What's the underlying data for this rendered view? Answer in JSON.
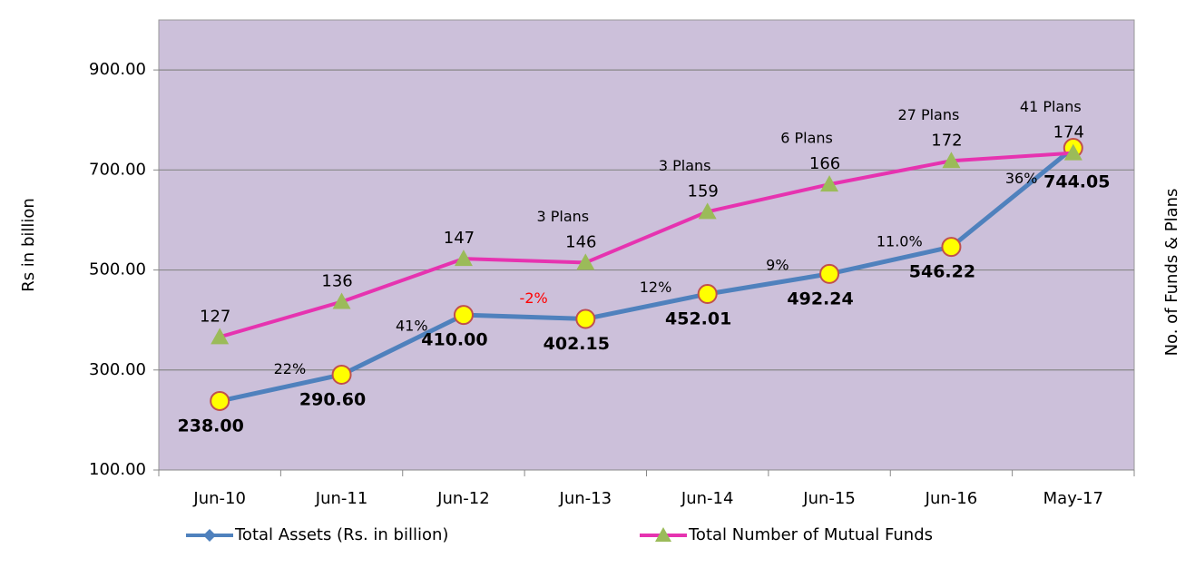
{
  "chart_data": {
    "type": "line",
    "categories": [
      "Jun-10",
      "Jun-11",
      "Jun-12",
      "Jun-13",
      "Jun-14",
      "Jun-15",
      "Jun-16",
      "May-17"
    ],
    "ylabel": "Rs  in billion",
    "y2label": "No.  of  Funds  &  Plans",
    "ylim": [
      100,
      1000
    ],
    "yticks": [
      {
        "value": 100,
        "label": "100.00"
      },
      {
        "value": 300,
        "label": "300.00"
      },
      {
        "value": 500,
        "label": "500.00"
      },
      {
        "value": 700,
        "label": "700.00"
      },
      {
        "value": 900,
        "label": "900.00"
      }
    ],
    "y2lim": [
      93,
      208
    ],
    "grid": true,
    "legend": "bottom",
    "series": [
      {
        "name": "Total Assets (Rs. in billion)",
        "color": "#4f81bd",
        "values": [
          238,
          290.6,
          410,
          402.15,
          452.01,
          492.24,
          546.22,
          744.05
        ],
        "value_labels": [
          "238.00",
          "290.60",
          "410.00",
          "402.15",
          "452.01",
          "492.24",
          "546.22",
          "744.05"
        ]
      },
      {
        "name": "Total Number of Mutual Funds",
        "color": "#e633b0",
        "axis": "y2",
        "values": [
          127,
          136,
          147,
          146,
          159,
          166,
          172,
          174
        ]
      }
    ],
    "growth_labels": [
      null,
      "22%",
      "41%",
      "-2%",
      "12%",
      "9%",
      "11.0%",
      "36%"
    ],
    "plan_labels": [
      null,
      null,
      null,
      "3 Plans",
      "3 Plans",
      "6 Plans",
      "27 Plans",
      "41 Plans"
    ]
  }
}
